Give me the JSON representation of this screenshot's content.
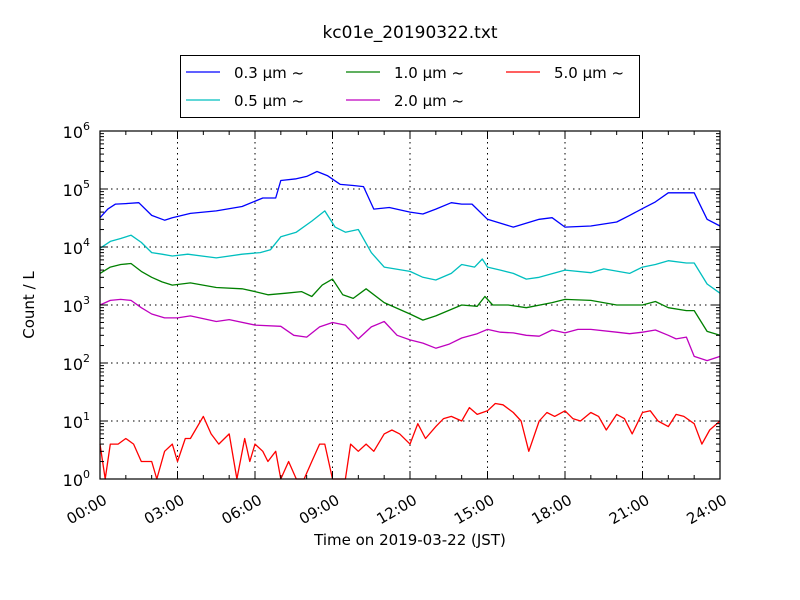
{
  "chart_data": {
    "type": "line",
    "title": "kc01e_20190322.txt",
    "xlabel": "Time on 2019-03-22 (JST)",
    "ylabel": "Count / L",
    "yscale": "log",
    "ylim": [
      1,
      1000000
    ],
    "xlim": [
      0,
      24
    ],
    "grid": true,
    "legend_position": "top-center",
    "x_ticks": [
      0,
      3,
      6,
      9,
      12,
      15,
      18,
      21,
      24
    ],
    "x_tick_labels": [
      "00:00",
      "03:00",
      "06:00",
      "09:00",
      "12:00",
      "15:00",
      "18:00",
      "21:00",
      "24:00"
    ],
    "y_ticks": [
      1,
      10,
      100,
      1000,
      10000,
      100000,
      1000000
    ],
    "y_tick_labels": [
      {
        "base": "10",
        "exp": "0"
      },
      {
        "base": "10",
        "exp": "1"
      },
      {
        "base": "10",
        "exp": "2"
      },
      {
        "base": "10",
        "exp": "3"
      },
      {
        "base": "10",
        "exp": "4"
      },
      {
        "base": "10",
        "exp": "5"
      },
      {
        "base": "10",
        "exp": "6"
      }
    ],
    "x_unit": "hours",
    "series": [
      {
        "name": "0.3 μm ~",
        "color": "#0000ff",
        "x": [
          0,
          0.3,
          0.6,
          1.0,
          1.5,
          2.0,
          2.5,
          2.8,
          3.5,
          4.5,
          5.5,
          6.3,
          6.8,
          7.0,
          7.6,
          8.0,
          8.4,
          8.8,
          9.3,
          9.8,
          10.2,
          10.6,
          11.2,
          12.0,
          12.5,
          13.0,
          13.6,
          14.0,
          14.4,
          15.0,
          16.0,
          17.0,
          17.5,
          18.0,
          19.0,
          20.0,
          20.5,
          21.0,
          21.5,
          22.0,
          22.7,
          23.0,
          23.5,
          24.0
        ],
        "values": [
          32000,
          45000,
          55000,
          56000,
          58000,
          35000,
          29000,
          32000,
          38000,
          42000,
          50000,
          70000,
          70000,
          140000,
          150000,
          165000,
          200000,
          170000,
          120000,
          115000,
          110000,
          45000,
          48000,
          40000,
          37000,
          45000,
          58000,
          55000,
          55000,
          30000,
          22000,
          30000,
          32000,
          22000,
          23000,
          27000,
          35000,
          46000,
          60000,
          86000,
          86000,
          86000,
          30000,
          23000
        ]
      },
      {
        "name": "0.5 μm ~",
        "color": "#00bfbf",
        "x": [
          0,
          0.4,
          0.8,
          1.2,
          1.6,
          2.0,
          2.4,
          2.8,
          3.4,
          4.5,
          5.5,
          6.2,
          6.6,
          7.0,
          7.6,
          8.2,
          8.7,
          9.1,
          9.5,
          10.0,
          10.5,
          11.0,
          12.0,
          12.5,
          13.0,
          13.6,
          14.0,
          14.5,
          14.8,
          15.0,
          15.5,
          16.0,
          16.5,
          17.0,
          18.0,
          19.0,
          19.5,
          20.5,
          21.0,
          21.5,
          22.0,
          22.7,
          23.0,
          23.5,
          24.0
        ],
        "values": [
          9500,
          12500,
          14000,
          16000,
          12000,
          8000,
          7500,
          7000,
          7500,
          6500,
          7500,
          8000,
          9000,
          15000,
          18000,
          28000,
          42000,
          22000,
          18000,
          20000,
          8000,
          4500,
          3800,
          3000,
          2700,
          3500,
          5000,
          4500,
          6200,
          4500,
          4000,
          3500,
          2800,
          3000,
          4000,
          3600,
          4200,
          3500,
          4500,
          5000,
          5800,
          5300,
          5300,
          2300,
          1600
        ]
      },
      {
        "name": "1.0 μm ~",
        "color": "#008000",
        "x": [
          0,
          0.4,
          0.8,
          1.2,
          1.6,
          2.0,
          2.4,
          2.8,
          3.5,
          4.5,
          5.5,
          6.0,
          6.5,
          7.2,
          7.8,
          8.2,
          8.6,
          9.0,
          9.4,
          9.8,
          10.3,
          11.0,
          12.0,
          12.5,
          13.0,
          14.0,
          14.6,
          14.9,
          15.2,
          15.8,
          16.5,
          17.5,
          18.0,
          19.0,
          20.0,
          21.0,
          21.5,
          22.0,
          22.7,
          23.0,
          23.5,
          24.0
        ],
        "values": [
          3500,
          4500,
          5000,
          5200,
          3800,
          3000,
          2500,
          2200,
          2400,
          2000,
          1900,
          1700,
          1500,
          1600,
          1700,
          1400,
          2200,
          2800,
          1500,
          1300,
          1900,
          1100,
          700,
          550,
          650,
          1000,
          950,
          1400,
          1000,
          1000,
          900,
          1100,
          1250,
          1200,
          1000,
          1000,
          1150,
          900,
          800,
          800,
          350,
          300
        ]
      },
      {
        "name": "2.0 μm ~",
        "color": "#bf00bf",
        "x": [
          0,
          0.4,
          0.8,
          1.2,
          1.6,
          2.0,
          2.5,
          3.0,
          3.5,
          4.5,
          5.0,
          6.0,
          7.0,
          7.5,
          8.0,
          8.5,
          9.0,
          9.5,
          10.0,
          10.5,
          11.0,
          11.5,
          12.0,
          12.5,
          13.0,
          13.5,
          14.0,
          14.6,
          15.0,
          15.5,
          16.0,
          16.5,
          17.0,
          17.5,
          18.0,
          18.5,
          19.0,
          20.0,
          20.5,
          21.0,
          21.5,
          22.0,
          22.3,
          22.7,
          23.0,
          23.5,
          24.0
        ],
        "values": [
          1000,
          1200,
          1250,
          1200,
          900,
          700,
          600,
          600,
          650,
          520,
          560,
          450,
          430,
          300,
          280,
          420,
          500,
          450,
          260,
          420,
          520,
          300,
          250,
          220,
          180,
          210,
          270,
          320,
          380,
          340,
          330,
          300,
          290,
          370,
          330,
          380,
          380,
          340,
          320,
          340,
          370,
          300,
          260,
          280,
          130,
          110,
          130
        ]
      },
      {
        "name": "5.0 μm ~",
        "color": "#ff0000",
        "x": [
          0,
          0.2,
          0.4,
          0.7,
          1.0,
          1.3,
          1.6,
          2.0,
          2.2,
          2.5,
          2.8,
          3.0,
          3.3,
          3.5,
          4.0,
          4.3,
          4.6,
          5.0,
          5.3,
          5.6,
          5.8,
          6.0,
          6.3,
          6.5,
          6.8,
          7.0,
          7.3,
          7.6,
          7.9,
          8.2,
          8.5,
          8.7,
          9.0,
          9.3,
          9.5,
          9.7,
          10.0,
          10.3,
          10.6,
          11.0,
          11.3,
          11.6,
          12.0,
          12.3,
          12.6,
          13.0,
          13.3,
          13.6,
          14.0,
          14.3,
          14.6,
          15.0,
          15.3,
          15.6,
          16.0,
          16.3,
          16.6,
          17.0,
          17.3,
          17.6,
          18.0,
          18.3,
          18.6,
          19.0,
          19.3,
          19.6,
          20.0,
          20.3,
          20.6,
          21.0,
          21.3,
          21.6,
          22.0,
          22.3,
          22.6,
          23.0,
          23.3,
          23.6,
          24.0
        ],
        "values": [
          4,
          1,
          4,
          4,
          5,
          4,
          2,
          2,
          1,
          3,
          4,
          2,
          5,
          5,
          12,
          6,
          4,
          6,
          1,
          5,
          2,
          4,
          3,
          2,
          3,
          1,
          2,
          1,
          1,
          2,
          4,
          4,
          1,
          1,
          1,
          4,
          3,
          4,
          3,
          6,
          7,
          6,
          4,
          9,
          5,
          8,
          11,
          12,
          10,
          17,
          13,
          15,
          20,
          19,
          14,
          10,
          3,
          10,
          14,
          12,
          15,
          11,
          10,
          14,
          12,
          7,
          13,
          11,
          6,
          14,
          15,
          10,
          8,
          13,
          12,
          9,
          4,
          7,
          10
        ]
      }
    ]
  }
}
